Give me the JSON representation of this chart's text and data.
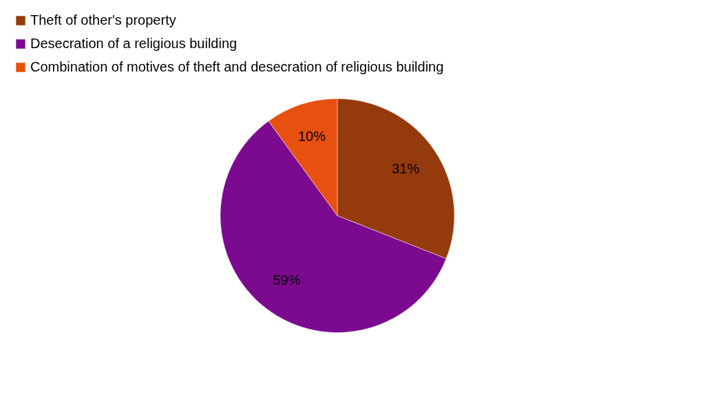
{
  "chart_data": {
    "type": "pie",
    "categories": [
      "Theft of other's property",
      "Desecration of a religious building",
      "Combination of motives of theft and desecration of religious building"
    ],
    "values": [
      31,
      59,
      10
    ],
    "colors": [
      "#953a0c",
      "#7b0a8f",
      "#e8500f"
    ],
    "value_labels": [
      "31%",
      "59%",
      "10%"
    ],
    "legend": "top"
  }
}
